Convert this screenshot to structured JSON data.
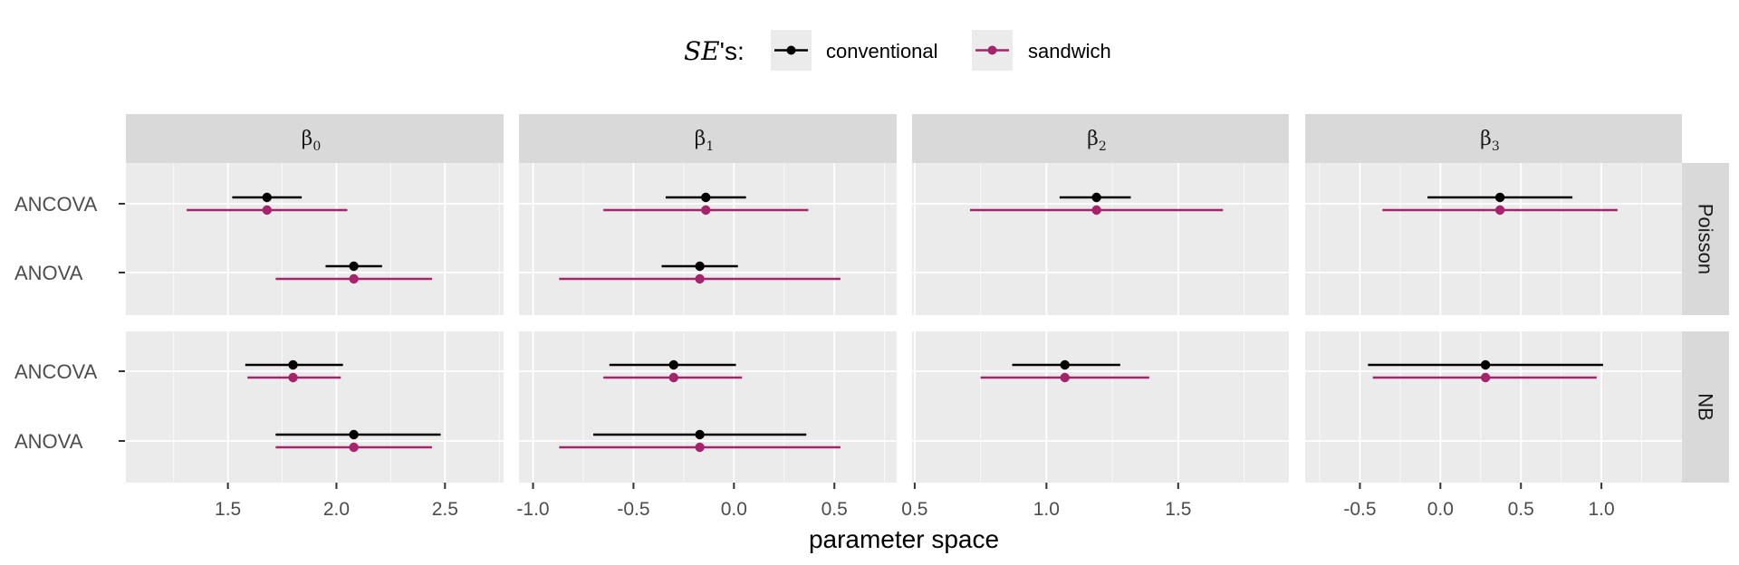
{
  "chart_data": {
    "type": "errorbar-faceted",
    "xlabel": "parameter space",
    "legend": {
      "title_italic": "SE",
      "title_rest": "'s:",
      "position": "top",
      "entries": [
        {
          "name": "conventional",
          "color": "#000000"
        },
        {
          "name": "sandwich",
          "color": "#A4256B"
        }
      ]
    },
    "columns": [
      {
        "sym": "β",
        "sub": "0",
        "xlim": [
          1.03,
          2.77
        ],
        "ticks": [
          1.5,
          2.0,
          2.5
        ],
        "tick_labels": [
          "1.5",
          "2.0",
          "2.5"
        ]
      },
      {
        "sym": "β",
        "sub": "1",
        "xlim": [
          -1.07,
          0.81
        ],
        "ticks": [
          -1.0,
          -0.5,
          0.0,
          0.5
        ],
        "tick_labels": [
          "-1.0",
          "-0.5",
          "0.0",
          "0.5"
        ]
      },
      {
        "sym": "β",
        "sub": "2",
        "xlim": [
          0.49,
          1.92
        ],
        "ticks": [
          0.5,
          1.0,
          1.5
        ],
        "tick_labels": [
          "0.5",
          "1.0",
          "1.5"
        ]
      },
      {
        "sym": "β",
        "sub": "3",
        "xlim": [
          -0.84,
          1.5
        ],
        "ticks": [
          -0.5,
          0.0,
          0.5,
          1.0
        ],
        "tick_labels": [
          "-0.5",
          "0.0",
          "0.5",
          "1.0"
        ]
      }
    ],
    "rows": [
      {
        "label": "Poisson",
        "categories": [
          "ANCOVA",
          "ANOVA"
        ]
      },
      {
        "label": "NB",
        "categories": [
          "ANCOVA",
          "ANOVA"
        ]
      }
    ],
    "panels": [
      {
        "row": 0,
        "col": 0,
        "points": [
          {
            "cat": "ANCOVA",
            "se": "conventional",
            "est": 1.68,
            "lo": 1.52,
            "hi": 1.84
          },
          {
            "cat": "ANCOVA",
            "se": "sandwich",
            "est": 1.68,
            "lo": 1.31,
            "hi": 2.05
          },
          {
            "cat": "ANOVA",
            "se": "conventional",
            "est": 2.08,
            "lo": 1.95,
            "hi": 2.21
          },
          {
            "cat": "ANOVA",
            "se": "sandwich",
            "est": 2.08,
            "lo": 1.72,
            "hi": 2.44
          }
        ]
      },
      {
        "row": 0,
        "col": 1,
        "points": [
          {
            "cat": "ANCOVA",
            "se": "conventional",
            "est": -0.14,
            "lo": -0.34,
            "hi": 0.06
          },
          {
            "cat": "ANCOVA",
            "se": "sandwich",
            "est": -0.14,
            "lo": -0.65,
            "hi": 0.37
          },
          {
            "cat": "ANOVA",
            "se": "conventional",
            "est": -0.17,
            "lo": -0.36,
            "hi": 0.02
          },
          {
            "cat": "ANOVA",
            "se": "sandwich",
            "est": -0.17,
            "lo": -0.87,
            "hi": 0.53
          }
        ]
      },
      {
        "row": 0,
        "col": 2,
        "points": [
          {
            "cat": "ANCOVA",
            "se": "conventional",
            "est": 1.19,
            "lo": 1.05,
            "hi": 1.32
          },
          {
            "cat": "ANCOVA",
            "se": "sandwich",
            "est": 1.19,
            "lo": 0.71,
            "hi": 1.67
          }
        ]
      },
      {
        "row": 0,
        "col": 3,
        "points": [
          {
            "cat": "ANCOVA",
            "se": "conventional",
            "est": 0.37,
            "lo": -0.08,
            "hi": 0.82
          },
          {
            "cat": "ANCOVA",
            "se": "sandwich",
            "est": 0.37,
            "lo": -0.36,
            "hi": 1.1
          }
        ]
      },
      {
        "row": 1,
        "col": 0,
        "points": [
          {
            "cat": "ANCOVA",
            "se": "conventional",
            "est": 1.8,
            "lo": 1.58,
            "hi": 2.03
          },
          {
            "cat": "ANCOVA",
            "se": "sandwich",
            "est": 1.8,
            "lo": 1.59,
            "hi": 2.02
          },
          {
            "cat": "ANOVA",
            "se": "conventional",
            "est": 2.08,
            "lo": 1.72,
            "hi": 2.48
          },
          {
            "cat": "ANOVA",
            "se": "sandwich",
            "est": 2.08,
            "lo": 1.72,
            "hi": 2.44
          }
        ]
      },
      {
        "row": 1,
        "col": 1,
        "points": [
          {
            "cat": "ANCOVA",
            "se": "conventional",
            "est": -0.3,
            "lo": -0.62,
            "hi": 0.01
          },
          {
            "cat": "ANCOVA",
            "se": "sandwich",
            "est": -0.3,
            "lo": -0.65,
            "hi": 0.04
          },
          {
            "cat": "ANOVA",
            "se": "conventional",
            "est": -0.17,
            "lo": -0.7,
            "hi": 0.36
          },
          {
            "cat": "ANOVA",
            "se": "sandwich",
            "est": -0.17,
            "lo": -0.87,
            "hi": 0.53
          }
        ]
      },
      {
        "row": 1,
        "col": 2,
        "points": [
          {
            "cat": "ANCOVA",
            "se": "conventional",
            "est": 1.07,
            "lo": 0.87,
            "hi": 1.28
          },
          {
            "cat": "ANCOVA",
            "se": "sandwich",
            "est": 1.07,
            "lo": 0.75,
            "hi": 1.39
          }
        ]
      },
      {
        "row": 1,
        "col": 3,
        "points": [
          {
            "cat": "ANCOVA",
            "se": "conventional",
            "est": 0.28,
            "lo": -0.45,
            "hi": 1.01
          },
          {
            "cat": "ANCOVA",
            "se": "sandwich",
            "est": 0.28,
            "lo": -0.42,
            "hi": 0.97
          }
        ]
      }
    ]
  }
}
